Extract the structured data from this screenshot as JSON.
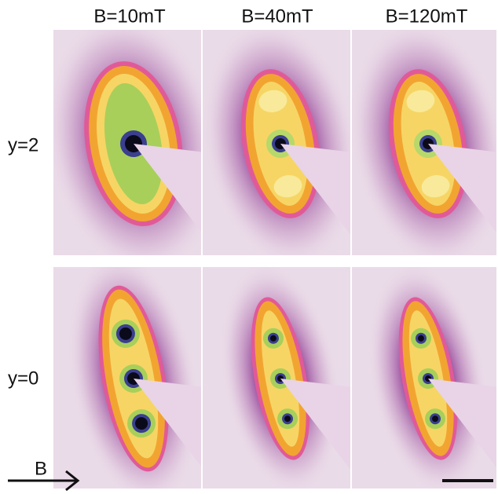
{
  "columns": [
    "B=10mT",
    "B=40mT",
    "B=120mT"
  ],
  "rows": [
    "y=2",
    "y=0"
  ],
  "field_label": "B"
}
